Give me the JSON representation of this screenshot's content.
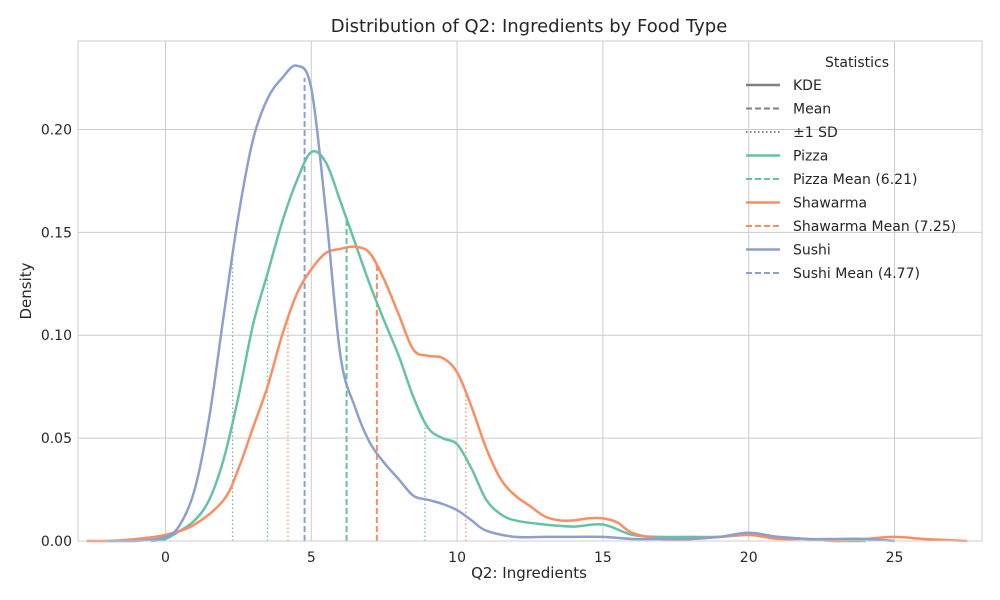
{
  "chart_data": {
    "type": "line",
    "title": "Distribution of Q2: Ingredients by Food Type",
    "xlabel": "Q2: Ingredients",
    "ylabel": "Density",
    "xlim": [
      -3,
      28
    ],
    "ylim": [
      0,
      0.243
    ],
    "xticks": [
      0,
      5,
      10,
      15,
      20,
      25
    ],
    "yticks": [
      0.0,
      0.05,
      0.1,
      0.15,
      0.2
    ],
    "xtick_labels": [
      "0",
      "5",
      "10",
      "15",
      "20",
      "25"
    ],
    "ytick_labels": [
      "0.00",
      "0.05",
      "0.10",
      "0.15",
      "0.20"
    ],
    "grid": true,
    "legend": {
      "title": "Statistics",
      "placement": "top-right",
      "entries": [
        {
          "label": "KDE",
          "style": "solid",
          "color": "#808080"
        },
        {
          "label": "Mean",
          "style": "dashed",
          "color": "#808080"
        },
        {
          "label": "±1 SD",
          "style": "dotted",
          "color": "#808080"
        },
        {
          "label": "Pizza",
          "style": "solid",
          "color": "#66c2a5"
        },
        {
          "label": "Pizza Mean (6.21)",
          "style": "dashed",
          "color": "#66c2a5"
        },
        {
          "label": "Shawarma",
          "style": "solid",
          "color": "#fc8d62"
        },
        {
          "label": "Shawarma Mean (7.25)",
          "style": "dashed",
          "color": "#fc8d62"
        },
        {
          "label": "Sushi",
          "style": "solid",
          "color": "#8da0cb"
        },
        {
          "label": "Sushi Mean (4.77)",
          "style": "dashed",
          "color": "#8da0cb"
        }
      ]
    },
    "series": [
      {
        "name": "Pizza",
        "color": "#66c2a5",
        "mean": 6.21,
        "sd_lines": [
          3.5,
          8.9
        ],
        "points": [
          [
            -0.5,
            0.0
          ],
          [
            0,
            0.001
          ],
          [
            0.5,
            0.005
          ],
          [
            1,
            0.01
          ],
          [
            1.5,
            0.02
          ],
          [
            2,
            0.04
          ],
          [
            2.5,
            0.07
          ],
          [
            3,
            0.105
          ],
          [
            3.5,
            0.13
          ],
          [
            4,
            0.155
          ],
          [
            4.5,
            0.175
          ],
          [
            5,
            0.189
          ],
          [
            5.5,
            0.184
          ],
          [
            6,
            0.165
          ],
          [
            6.5,
            0.145
          ],
          [
            7,
            0.125
          ],
          [
            7.5,
            0.107
          ],
          [
            8,
            0.09
          ],
          [
            8.5,
            0.07
          ],
          [
            9,
            0.055
          ],
          [
            9.5,
            0.05
          ],
          [
            10,
            0.047
          ],
          [
            10.5,
            0.035
          ],
          [
            11,
            0.02
          ],
          [
            11.5,
            0.013
          ],
          [
            12,
            0.01
          ],
          [
            13,
            0.008
          ],
          [
            14,
            0.007
          ],
          [
            15,
            0.008
          ],
          [
            16,
            0.003
          ],
          [
            17,
            0.002
          ],
          [
            18,
            0.002
          ],
          [
            19,
            0.002
          ],
          [
            20,
            0.003
          ],
          [
            21,
            0.002
          ],
          [
            22,
            0.001
          ],
          [
            23,
            0.0
          ],
          [
            24,
            0.0
          ]
        ]
      },
      {
        "name": "Shawarma",
        "color": "#fc8d62",
        "mean": 7.25,
        "sd_lines": [
          4.2,
          10.3
        ],
        "points": [
          [
            -2.7,
            0.0
          ],
          [
            -2,
            0.0
          ],
          [
            -1,
            0.001
          ],
          [
            0,
            0.003
          ],
          [
            1,
            0.008
          ],
          [
            2,
            0.02
          ],
          [
            2.5,
            0.035
          ],
          [
            3,
            0.055
          ],
          [
            3.5,
            0.075
          ],
          [
            4,
            0.1
          ],
          [
            4.5,
            0.12
          ],
          [
            5,
            0.132
          ],
          [
            5.5,
            0.14
          ],
          [
            6,
            0.142
          ],
          [
            6.5,
            0.143
          ],
          [
            7,
            0.14
          ],
          [
            7.5,
            0.127
          ],
          [
            8,
            0.11
          ],
          [
            8.5,
            0.093
          ],
          [
            9,
            0.09
          ],
          [
            9.5,
            0.089
          ],
          [
            10,
            0.082
          ],
          [
            10.5,
            0.065
          ],
          [
            11,
            0.045
          ],
          [
            11.5,
            0.03
          ],
          [
            12,
            0.022
          ],
          [
            12.5,
            0.017
          ],
          [
            13,
            0.012
          ],
          [
            13.5,
            0.01
          ],
          [
            14,
            0.01
          ],
          [
            14.5,
            0.011
          ],
          [
            15,
            0.011
          ],
          [
            15.5,
            0.009
          ],
          [
            16,
            0.004
          ],
          [
            17,
            0.001
          ],
          [
            18,
            0.001
          ],
          [
            19,
            0.002
          ],
          [
            20,
            0.003
          ],
          [
            21,
            0.001
          ],
          [
            22,
            0.001
          ],
          [
            23,
            0.0
          ],
          [
            24,
            0.001
          ],
          [
            25,
            0.002
          ],
          [
            26,
            0.001
          ],
          [
            27.5,
            0.0
          ]
        ]
      },
      {
        "name": "Sushi",
        "color": "#8da0cb",
        "mean": 4.77,
        "sd_lines": [
          2.3
        ],
        "points": [
          [
            -2,
            0.0
          ],
          [
            -1,
            0.0
          ],
          [
            0,
            0.002
          ],
          [
            0.5,
            0.008
          ],
          [
            1,
            0.025
          ],
          [
            1.5,
            0.06
          ],
          [
            2,
            0.11
          ],
          [
            2.5,
            0.158
          ],
          [
            3,
            0.195
          ],
          [
            3.5,
            0.215
          ],
          [
            4,
            0.225
          ],
          [
            4.5,
            0.231
          ],
          [
            5,
            0.22
          ],
          [
            5.5,
            0.16
          ],
          [
            6,
            0.09
          ],
          [
            6.5,
            0.065
          ],
          [
            7,
            0.048
          ],
          [
            7.5,
            0.038
          ],
          [
            8,
            0.03
          ],
          [
            8.5,
            0.022
          ],
          [
            9,
            0.02
          ],
          [
            9.5,
            0.018
          ],
          [
            10,
            0.015
          ],
          [
            10.5,
            0.01
          ],
          [
            11,
            0.005
          ],
          [
            12,
            0.002
          ],
          [
            13,
            0.002
          ],
          [
            14,
            0.002
          ],
          [
            15,
            0.002
          ],
          [
            16,
            0.001
          ],
          [
            17,
            0.001
          ],
          [
            18,
            0.001
          ],
          [
            19,
            0.002
          ],
          [
            20,
            0.004
          ],
          [
            21,
            0.002
          ],
          [
            22,
            0.001
          ],
          [
            23,
            0.001
          ],
          [
            24,
            0.001
          ],
          [
            25,
            0.0
          ]
        ]
      }
    ]
  }
}
